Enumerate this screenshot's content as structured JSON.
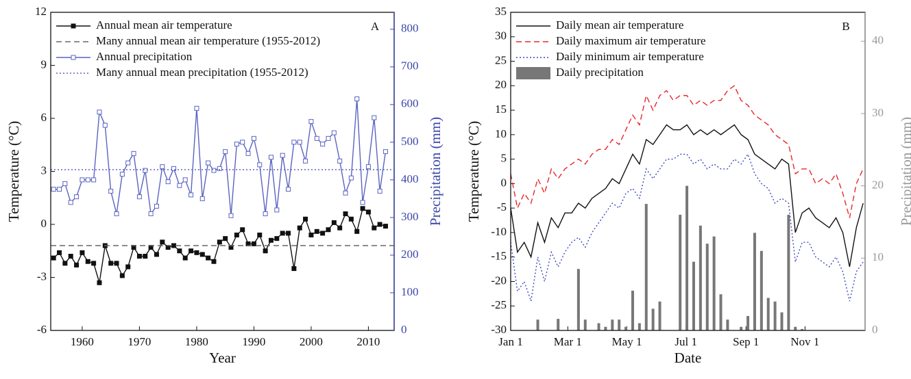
{
  "chart_data": [
    {
      "type": "line",
      "panel_label": "A",
      "xlabel": "Year",
      "ylabel": "Temperature (°C)",
      "y2label": "Precipitation (mm)",
      "y2color": "#3b46a8",
      "xlim": [
        1954.5,
        2014.5
      ],
      "xticks": [
        1960,
        1970,
        1980,
        1990,
        2000,
        2010
      ],
      "ylim": [
        -6,
        12
      ],
      "yticks": [
        -6,
        -3,
        0,
        3,
        6,
        9,
        12
      ],
      "y2lim": [
        0,
        845
      ],
      "y2ticks": [
        0,
        100,
        200,
        300,
        400,
        500,
        600,
        700,
        800
      ],
      "x": [
        1955,
        1956,
        1957,
        1958,
        1959,
        1960,
        1961,
        1962,
        1963,
        1964,
        1965,
        1966,
        1967,
        1968,
        1969,
        1970,
        1971,
        1972,
        1973,
        1974,
        1975,
        1976,
        1977,
        1978,
        1979,
        1980,
        1981,
        1982,
        1983,
        1984,
        1985,
        1986,
        1987,
        1988,
        1989,
        1990,
        1991,
        1992,
        1993,
        1994,
        1995,
        1996,
        1997,
        1998,
        1999,
        2000,
        2001,
        2002,
        2003,
        2004,
        2005,
        2006,
        2007,
        2008,
        2009,
        2010,
        2011,
        2012,
        2013
      ],
      "series": [
        {
          "name": "Annual mean air temperature",
          "kind": "line",
          "line": "solid",
          "marker": "square-filled",
          "color": "#111111",
          "axis": "y",
          "values": [
            -1.9,
            -1.6,
            -2.2,
            -1.8,
            -2.3,
            -1.6,
            -2.1,
            -2.2,
            -3.3,
            -1.2,
            -2.2,
            -2.2,
            -2.9,
            -2.4,
            -1.3,
            -1.8,
            -1.8,
            -1.3,
            -1.7,
            -1.0,
            -1.3,
            -1.2,
            -1.5,
            -1.9,
            -1.5,
            -1.6,
            -1.7,
            -1.9,
            -2.1,
            -1.0,
            -0.8,
            -1.3,
            -0.6,
            -0.3,
            -1.1,
            -1.1,
            -0.6,
            -1.5,
            -0.9,
            -0.8,
            -0.5,
            -0.5,
            -2.5,
            -0.2,
            0.3,
            -0.6,
            -0.4,
            -0.5,
            -0.3,
            0.1,
            -0.2,
            0.6,
            0.3,
            -0.4,
            0.9,
            0.7,
            -0.2,
            0.0,
            -0.1
          ]
        },
        {
          "name": "Many annual mean air temperature (1955-2012)",
          "kind": "hline",
          "line": "dashed",
          "color": "#666666",
          "axis": "y",
          "value": -1.2
        },
        {
          "name": "Annual precipitation",
          "kind": "line",
          "line": "solid",
          "marker": "square-open",
          "color": "#5a63c0",
          "axis": "y2",
          "values": [
            375,
            375,
            390,
            340,
            355,
            400,
            400,
            400,
            580,
            545,
            370,
            310,
            415,
            445,
            470,
            355,
            425,
            310,
            330,
            435,
            395,
            430,
            385,
            400,
            360,
            590,
            350,
            445,
            425,
            430,
            475,
            305,
            495,
            500,
            470,
            510,
            440,
            310,
            460,
            320,
            465,
            375,
            500,
            500,
            450,
            555,
            510,
            495,
            510,
            525,
            450,
            365,
            405,
            615,
            340,
            435,
            565,
            370,
            475
          ]
        },
        {
          "name": "Many annual mean precipitation (1955-2012)",
          "kind": "hline",
          "line": "dotted",
          "color": "#5a63c0",
          "axis": "y2",
          "value": 427
        }
      ]
    },
    {
      "type": "line",
      "panel_label": "B",
      "xlabel": "Date",
      "ylabel": "Temperature (°C)",
      "y2label": "Precipitation (mm)",
      "y2color": "#999999",
      "xlim": [
        0,
        366
      ],
      "xticks": [
        {
          "value": 0,
          "label": "Jan 1"
        },
        {
          "value": 59,
          "label": "Mar 1"
        },
        {
          "value": 120,
          "label": "May 1"
        },
        {
          "value": 181,
          "label": "Jul 1"
        },
        {
          "value": 243,
          "label": "Sep 1"
        },
        {
          "value": 304,
          "label": "Nov 1"
        }
      ],
      "ylim": [
        -30,
        35
      ],
      "yticks": [
        -30,
        -25,
        -20,
        -15,
        -10,
        -5,
        0,
        5,
        10,
        15,
        20,
        25,
        30,
        35
      ],
      "y2lim": [
        0,
        44
      ],
      "y2ticks": [
        0,
        10,
        20,
        30,
        40
      ],
      "x": [
        0,
        7,
        14,
        21,
        28,
        35,
        42,
        49,
        56,
        63,
        70,
        77,
        84,
        91,
        98,
        105,
        112,
        119,
        126,
        133,
        140,
        147,
        154,
        161,
        168,
        175,
        182,
        189,
        196,
        203,
        210,
        217,
        224,
        231,
        238,
        245,
        252,
        259,
        266,
        273,
        280,
        287,
        294,
        301,
        308,
        315,
        322,
        329,
        336,
        343,
        350,
        357,
        364
      ],
      "series": [
        {
          "name": "Daily mean air temperature",
          "kind": "line",
          "line": "solid",
          "color": "#111111",
          "axis": "y",
          "values": [
            -5,
            -14,
            -12,
            -15,
            -8,
            -12,
            -7,
            -9,
            -6,
            -6,
            -4,
            -5,
            -3,
            -2,
            -1,
            1,
            0,
            3,
            6,
            4,
            9,
            8,
            10,
            12,
            11,
            11,
            12,
            10,
            11,
            10,
            11,
            10,
            11,
            12,
            10,
            9,
            6,
            5,
            4,
            3,
            5,
            4,
            -10,
            -6,
            -5,
            -7,
            -8,
            -9,
            -7,
            -10,
            -17,
            -9,
            -4
          ]
        },
        {
          "name": "Daily maximum air temperature",
          "kind": "line",
          "line": "dashed",
          "color": "#e8262a",
          "axis": "y",
          "values": [
            2,
            -5,
            -2,
            -4,
            1,
            -2,
            3,
            1,
            3,
            4,
            5,
            4,
            6,
            7,
            7,
            9,
            8,
            11,
            14,
            12,
            18,
            15,
            18,
            19,
            17,
            18,
            18,
            16,
            17,
            16,
            17,
            17,
            19,
            20,
            17,
            16,
            14,
            13,
            12,
            10,
            9,
            8,
            2,
            3,
            3,
            0,
            1,
            0,
            2,
            -2,
            -7,
            0,
            3
          ]
        },
        {
          "name": "Daily minimum air temperature",
          "kind": "line",
          "line": "dotted",
          "color": "#3b46c0",
          "axis": "y",
          "values": [
            -12,
            -22,
            -20,
            -24,
            -15,
            -20,
            -14,
            -17,
            -14,
            -12,
            -11,
            -13,
            -10,
            -8,
            -6,
            -4,
            -5,
            -2,
            -1,
            -3,
            3,
            1,
            3,
            5,
            5,
            6,
            6,
            4,
            5,
            3,
            4,
            3,
            3,
            5,
            4,
            6,
            2,
            0,
            -1,
            -4,
            -3,
            -4,
            -16,
            -12,
            -12,
            -15,
            -16,
            -17,
            -15,
            -18,
            -24,
            -18,
            -16
          ]
        },
        {
          "name": "Daily precipitation",
          "kind": "bar",
          "color": "#777777",
          "axis": "y2",
          "values": [
            0,
            0,
            0,
            0,
            1.5,
            0,
            0,
            1.6,
            0,
            0,
            8.5,
            1.5,
            0,
            1,
            0.5,
            1.5,
            1.5,
            0.5,
            5.5,
            1,
            17.5,
            3,
            4,
            0,
            0,
            16,
            20,
            9.5,
            14.5,
            12,
            13,
            5,
            1.5,
            0,
            0.5,
            2,
            13.5,
            11,
            4.5,
            4,
            2.5,
            16,
            0.5,
            0.2,
            0,
            0,
            0,
            0,
            0,
            0,
            0,
            0,
            0
          ]
        }
      ]
    }
  ]
}
